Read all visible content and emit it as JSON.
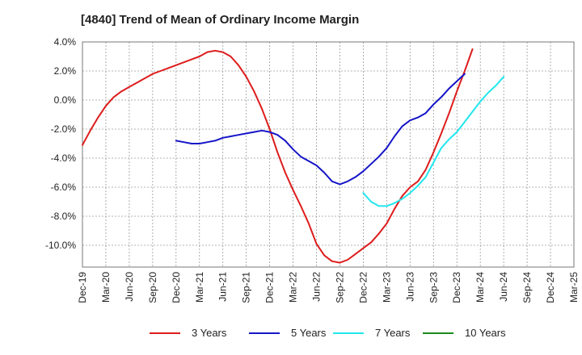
{
  "title": "[4840]  Trend of Mean of Ordinary Income Margin",
  "chart_data": {
    "type": "line",
    "title": "[4840]  Trend of Mean of Ordinary Income Margin",
    "xlabel": "",
    "ylabel": "",
    "x_ticks": [
      "Dec-19",
      "Mar-20",
      "Jun-20",
      "Sep-20",
      "Dec-20",
      "Mar-21",
      "Jun-21",
      "Sep-21",
      "Dec-21",
      "Mar-22",
      "Jun-22",
      "Sep-22",
      "Dec-22",
      "Mar-23",
      "Jun-23",
      "Sep-23",
      "Dec-23",
      "Mar-24",
      "Jun-24",
      "Sep-24",
      "Dec-24",
      "Mar-25"
    ],
    "y_ticks": [
      "4.0%",
      "2.0%",
      "0.0%",
      "-2.0%",
      "-4.0%",
      "-6.0%",
      "-8.0%",
      "-10.0%"
    ],
    "ylim": [
      -11.5,
      4.0
    ],
    "grid": true,
    "legend_position": "bottom",
    "series": [
      {
        "name": "3 Years",
        "color": "#dd1c1c",
        "start_index": 0,
        "values": [
          -3.1,
          -2.1,
          -1.2,
          -0.4,
          0.2,
          0.6,
          0.9,
          1.2,
          1.5,
          1.8,
          2.0,
          2.2,
          2.4,
          2.6,
          2.8,
          3.0,
          3.3,
          3.4,
          3.3,
          3.0,
          2.4,
          1.6,
          0.6,
          -0.6,
          -2.0,
          -3.6,
          -5.0,
          -6.2,
          -7.3,
          -8.5,
          -9.9,
          -10.7,
          -11.1,
          -11.2,
          -11.0,
          -10.6,
          -10.2,
          -9.8,
          -9.2,
          -8.5,
          -7.5,
          -6.6,
          -6.0,
          -5.6,
          -4.8,
          -3.6,
          -2.3,
          -0.9,
          0.6,
          2.0,
          3.5
        ]
      },
      {
        "name": "5 Years",
        "color": "#1515c8",
        "start_index": 12,
        "values": [
          -2.8,
          -2.9,
          -3.0,
          -3.0,
          -2.9,
          -2.8,
          -2.6,
          -2.5,
          -2.4,
          -2.3,
          -2.2,
          -2.1,
          -2.2,
          -2.4,
          -2.8,
          -3.4,
          -3.9,
          -4.2,
          -4.5,
          -5.0,
          -5.6,
          -5.8,
          -5.6,
          -5.3,
          -4.9,
          -4.4,
          -3.9,
          -3.3,
          -2.5,
          -1.8,
          -1.4,
          -1.2,
          -0.9,
          -0.3,
          0.2,
          0.8,
          1.3,
          1.8
        ]
      },
      {
        "name": "7 Years",
        "color": "#22e6ee",
        "start_index": 36,
        "values": [
          -6.4,
          -7.0,
          -7.3,
          -7.3,
          -7.1,
          -6.8,
          -6.4,
          -5.9,
          -5.3,
          -4.3,
          -3.3,
          -2.7,
          -2.2,
          -1.5,
          -0.8,
          -0.1,
          0.5,
          1.0,
          1.6
        ]
      },
      {
        "name": "10 Years",
        "color": "#1a8a1a",
        "start_index": 0,
        "values": []
      }
    ]
  }
}
